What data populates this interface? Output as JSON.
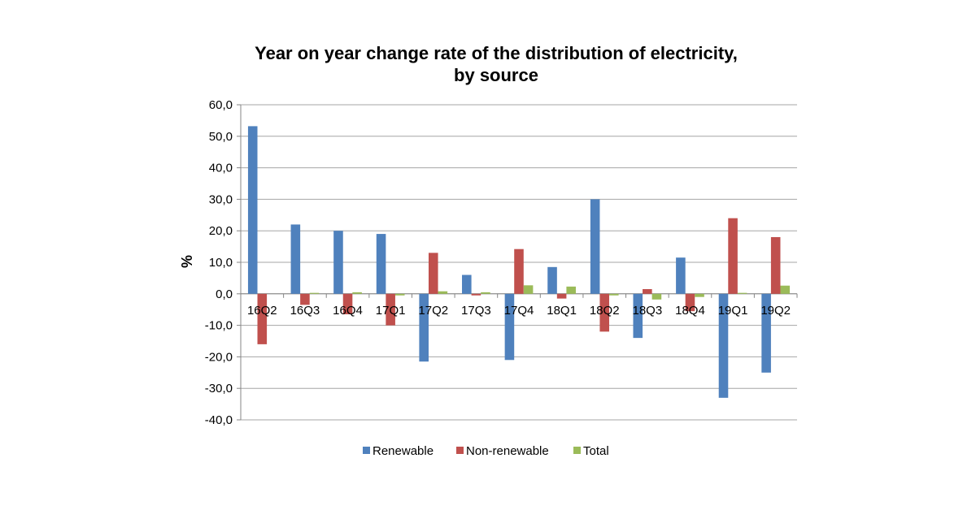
{
  "chart_data": {
    "type": "bar",
    "title_lines": [
      "Year on year change rate of the distribution of electricity,",
      "by source"
    ],
    "ylabel": "%",
    "xlabel": "",
    "ylim": [
      -40,
      60
    ],
    "yticks": [
      "60,0",
      "50,0",
      "40,0",
      "30,0",
      "20,0",
      "10,0",
      "0,0",
      "-10,0",
      "-20,0",
      "-30,0",
      "-40,0"
    ],
    "ytick_values": [
      60,
      50,
      40,
      30,
      20,
      10,
      0,
      -10,
      -20,
      -30,
      -40
    ],
    "grid": true,
    "legend_position": "bottom",
    "categories": [
      "16Q2",
      "16Q3",
      "16Q4",
      "17Q1",
      "17Q2",
      "17Q3",
      "17Q4",
      "18Q1",
      "18Q2",
      "18Q3",
      "18Q4",
      "19Q1",
      "19Q2"
    ],
    "series": [
      {
        "name": "Renewable",
        "color": "#4F81BD",
        "values": [
          53.2,
          22.0,
          20.0,
          19.0,
          -21.5,
          6.0,
          -21.0,
          8.5,
          30.0,
          -14.0,
          11.5,
          -33.0,
          -25.0
        ]
      },
      {
        "name": "Non-renewable",
        "color": "#C0504D",
        "values": [
          -16.0,
          -3.5,
          -6.5,
          -10.0,
          13.0,
          -0.5,
          14.2,
          -1.5,
          -12.0,
          1.5,
          -5.5,
          24.0,
          18.0
        ]
      },
      {
        "name": "Total",
        "color": "#9BBB59",
        "values": [
          0.0,
          0.3,
          0.5,
          -0.5,
          0.8,
          0.5,
          2.7,
          2.3,
          -0.5,
          -1.8,
          -1.0,
          0.3,
          2.6
        ]
      }
    ]
  }
}
